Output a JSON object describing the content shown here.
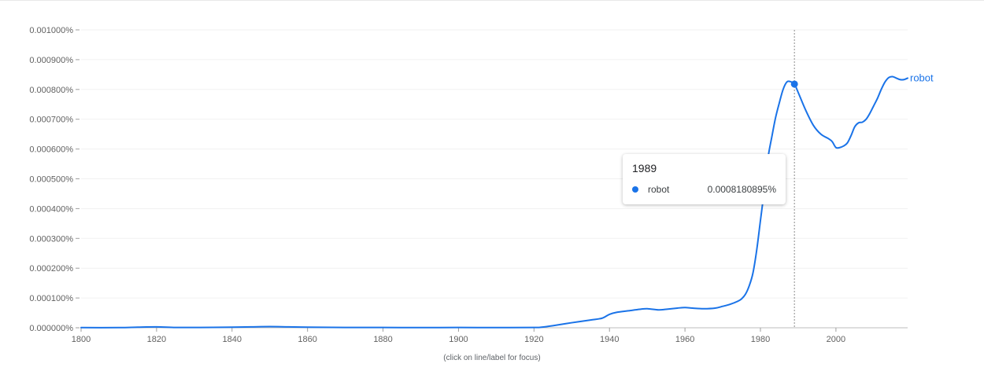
{
  "chart_data": {
    "type": "line",
    "title": "",
    "xlabel": "",
    "ylabel": "",
    "xlim": [
      1800,
      2019
    ],
    "ylim": [
      0,
      0.001
    ],
    "x_ticks": [
      1800,
      1820,
      1840,
      1860,
      1880,
      1900,
      1920,
      1940,
      1960,
      1980,
      2000
    ],
    "x_tick_labels": [
      "1800",
      "1820",
      "1840",
      "1860",
      "1880",
      "1900",
      "1920",
      "1940",
      "1960",
      "1980",
      "2000"
    ],
    "y_ticks": [
      0,
      0.0001,
      0.0002,
      0.0003,
      0.0004,
      0.0005,
      0.0006,
      0.0007,
      0.0008,
      0.0009,
      0.001
    ],
    "y_tick_labels": [
      "0.000000%",
      "0.000100%",
      "0.000200%",
      "0.000300%",
      "0.000400%",
      "0.000500%",
      "0.000600%",
      "0.000700%",
      "0.000800%",
      "0.000900%",
      "0.001000%"
    ],
    "grid": true,
    "series": [
      {
        "name": "robot",
        "color": "#1a73e8",
        "x": [
          1800,
          1810,
          1815,
          1820,
          1825,
          1830,
          1840,
          1845,
          1850,
          1855,
          1860,
          1870,
          1880,
          1890,
          1900,
          1910,
          1920,
          1922,
          1925,
          1930,
          1935,
          1938,
          1940,
          1942,
          1945,
          1948,
          1950,
          1953,
          1955,
          1958,
          1960,
          1962,
          1965,
          1968,
          1970,
          1972,
          1974,
          1975,
          1976,
          1977,
          1978,
          1979,
          1980,
          1981,
          1982,
          1983,
          1984,
          1985,
          1986,
          1987,
          1988,
          1989,
          1990,
          1992,
          1994,
          1996,
          1998,
          1999,
          2000,
          2001,
          2002,
          2003,
          2004,
          2005,
          2006,
          2007,
          2008,
          2009,
          2010,
          2011,
          2012,
          2013,
          2014,
          2015,
          2016,
          2017,
          2018,
          2019
        ],
        "y": [
          5e-07,
          5e-07,
          2e-06,
          3e-06,
          1e-06,
          1e-06,
          2e-06,
          3e-06,
          4e-06,
          3e-06,
          2e-06,
          1e-06,
          1e-06,
          5e-07,
          1e-06,
          5e-07,
          1e-06,
          2e-06,
          7e-06,
          1.7e-05,
          2.6e-05,
          3.2e-05,
          4.5e-05,
          5.2e-05,
          5.7e-05,
          6.2e-05,
          6.4e-05,
          6e-05,
          6.2e-05,
          6.6e-05,
          6.8e-05,
          6.6e-05,
          6.4e-05,
          6.6e-05,
          7.2e-05,
          7.9e-05,
          8.9e-05,
          9.7e-05,
          0.000112,
          0.00014,
          0.000183,
          0.00026,
          0.00036,
          0.00046,
          0.00057,
          0.00064,
          0.000705,
          0.000755,
          0.0008,
          0.000825,
          0.000826,
          0.000818,
          0.00079,
          0.00073,
          0.00068,
          0.00065,
          0.000635,
          0.000625,
          0.000605,
          0.000605,
          0.00061,
          0.00062,
          0.000645,
          0.000675,
          0.000688,
          0.00069,
          0.0007,
          0.00072,
          0.000745,
          0.00077,
          0.0008,
          0.000825,
          0.00084,
          0.000843,
          0.000838,
          0.000833,
          0.000833,
          0.000838
        ]
      }
    ],
    "hover": {
      "year": 1989,
      "series": "robot",
      "value": 0.0008180895
    },
    "legend_placement": "inline-end-of-line"
  },
  "tooltip": {
    "year": "1989",
    "series_name": "robot",
    "value_label": "0.0008180895%"
  },
  "footnote": "(click on line/label for focus)"
}
